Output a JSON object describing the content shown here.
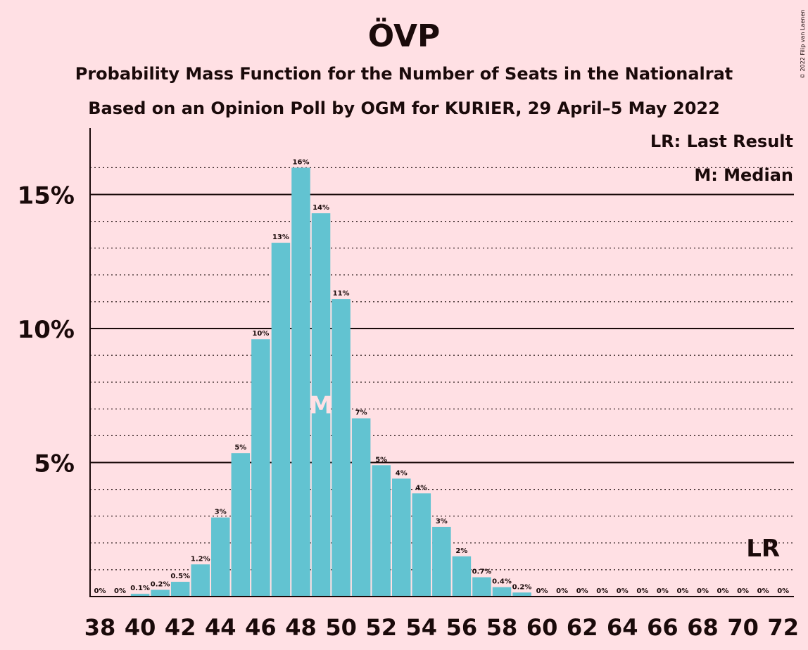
{
  "chart_data": {
    "type": "bar",
    "title": "ÖVP",
    "subtitle1": "Probability Mass Function for the Number of Seats in the Nationalrat",
    "subtitle2": "Based on an Opinion Poll by OGM for KURIER, 29 April–5 May 2022",
    "copyright": "© 2022 Filip van Laenen",
    "legend_lr": "LR: Last Result",
    "legend_m": "M: Median",
    "median_label": "M",
    "median_seat": 49,
    "last_result_label": "LR",
    "last_result_seat": 71,
    "x": [
      38,
      39,
      40,
      41,
      42,
      43,
      44,
      45,
      46,
      47,
      48,
      49,
      50,
      51,
      52,
      53,
      54,
      55,
      56,
      57,
      58,
      59,
      60,
      61,
      62,
      63,
      64,
      65,
      66,
      67,
      68,
      69,
      70,
      71,
      72
    ],
    "values": [
      0,
      0,
      0.1,
      0.25,
      0.55,
      1.2,
      2.95,
      5.35,
      9.6,
      13.2,
      16.0,
      14.3,
      11.1,
      6.65,
      4.9,
      4.4,
      3.85,
      2.6,
      1.5,
      0.72,
      0.35,
      0.15,
      0,
      0,
      0,
      0,
      0,
      0,
      0,
      0,
      0,
      0,
      0,
      0,
      0
    ],
    "labels": [
      "0%",
      "0%",
      "0.1%",
      "0.2%",
      "0.5%",
      "1.2%",
      "3%",
      "5%",
      "10%",
      "13%",
      "16%",
      "14%",
      "11%",
      "7%",
      "5%",
      "4%",
      "4%",
      "3%",
      "2%",
      "0.7%",
      "0.4%",
      "0.2%",
      "0%",
      "0%",
      "0%",
      "0%",
      "0%",
      "0%",
      "0%",
      "0%",
      "0%",
      "0%",
      "0%",
      "0%",
      "0%"
    ],
    "x_ticks": [
      38,
      40,
      42,
      44,
      46,
      48,
      50,
      52,
      54,
      56,
      58,
      60,
      62,
      64,
      66,
      68,
      70,
      72
    ],
    "y_ticks": [
      {
        "value": 5,
        "label": "5%"
      },
      {
        "value": 10,
        "label": "10%"
      },
      {
        "value": 15,
        "label": "15%"
      }
    ],
    "ylim": [
      0,
      17.5
    ],
    "colors": {
      "bar": "#62c3d1",
      "background": "#ffe0e4",
      "text": "#1a0a0a"
    }
  }
}
